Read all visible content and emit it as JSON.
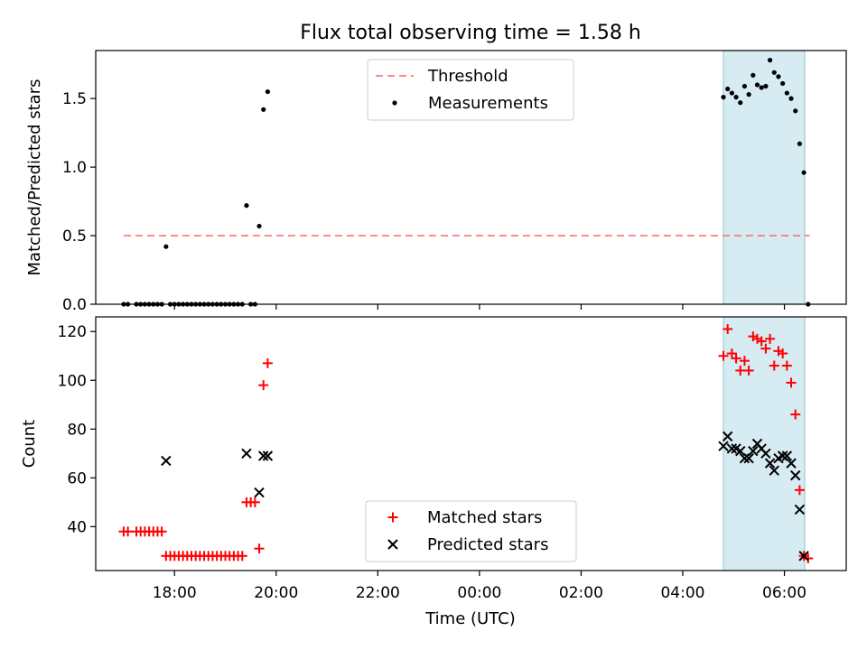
{
  "figure": {
    "title": "Flux total observing time = 1.58 h"
  },
  "chart_data": [
    {
      "type": "scatter",
      "panel": "top",
      "ylabel": "Matched/Predicted stars",
      "ylim": [
        0,
        1.85
      ],
      "yticks": [
        0.0,
        0.5,
        1.0,
        1.5
      ],
      "ytick_labels": [
        "0.0",
        "0.5",
        "1.0",
        "1.5"
      ],
      "xlim": [
        "16:27",
        "07:13"
      ],
      "highlight_span": [
        "04:48",
        "06:24"
      ],
      "legend": {
        "position": "top-center"
      },
      "threshold": {
        "name": "Threshold",
        "y": 0.5,
        "x_start": "17:00",
        "x_end": "06:30",
        "color": "#ff7070",
        "style": "dashed"
      },
      "series": [
        {
          "name": "Measurements",
          "color": "#000000",
          "points": [
            [
              "17:00",
              0.0
            ],
            [
              "17:05",
              0.0
            ],
            [
              "17:15",
              0.0
            ],
            [
              "17:20",
              0.0
            ],
            [
              "17:25",
              0.0
            ],
            [
              "17:30",
              0.0
            ],
            [
              "17:35",
              0.0
            ],
            [
              "17:40",
              0.0
            ],
            [
              "17:45",
              0.0
            ],
            [
              "17:50",
              0.42
            ],
            [
              "17:55",
              0.0
            ],
            [
              "18:00",
              0.0
            ],
            [
              "18:05",
              0.0
            ],
            [
              "18:10",
              0.0
            ],
            [
              "18:15",
              0.0
            ],
            [
              "18:20",
              0.0
            ],
            [
              "18:25",
              0.0
            ],
            [
              "18:30",
              0.0
            ],
            [
              "18:35",
              0.0
            ],
            [
              "18:40",
              0.0
            ],
            [
              "18:45",
              0.0
            ],
            [
              "18:50",
              0.0
            ],
            [
              "18:55",
              0.0
            ],
            [
              "19:00",
              0.0
            ],
            [
              "19:05",
              0.0
            ],
            [
              "19:10",
              0.0
            ],
            [
              "19:15",
              0.0
            ],
            [
              "19:20",
              0.0
            ],
            [
              "19:25",
              0.72
            ],
            [
              "19:30",
              0.0
            ],
            [
              "19:35",
              0.0
            ],
            [
              "19:40",
              0.57
            ],
            [
              "19:45",
              1.42
            ],
            [
              "19:50",
              1.55
            ],
            [
              "04:48",
              1.51
            ],
            [
              "04:53",
              1.57
            ],
            [
              "04:58",
              1.54
            ],
            [
              "05:03",
              1.51
            ],
            [
              "05:08",
              1.47
            ],
            [
              "05:13",
              1.59
            ],
            [
              "05:18",
              1.53
            ],
            [
              "05:23",
              1.67
            ],
            [
              "05:28",
              1.6
            ],
            [
              "05:33",
              1.58
            ],
            [
              "05:38",
              1.59
            ],
            [
              "05:43",
              1.78
            ],
            [
              "05:48",
              1.69
            ],
            [
              "05:53",
              1.66
            ],
            [
              "05:58",
              1.61
            ],
            [
              "06:03",
              1.54
            ],
            [
              "06:08",
              1.5
            ],
            [
              "06:13",
              1.41
            ],
            [
              "06:18",
              1.17
            ],
            [
              "06:23",
              0.96
            ],
            [
              "06:28",
              0.0
            ]
          ]
        }
      ]
    },
    {
      "type": "scatter",
      "panel": "bottom",
      "ylabel": "Count",
      "xlabel": "Time (UTC)",
      "ylim": [
        22,
        126
      ],
      "yticks": [
        40,
        60,
        80,
        100,
        120
      ],
      "ytick_labels": [
        "40",
        "60",
        "80",
        "100",
        "120"
      ],
      "xlim": [
        "16:27",
        "07:13"
      ],
      "xticks": [
        "18:00",
        "20:00",
        "22:00",
        "00:00",
        "02:00",
        "04:00",
        "06:00"
      ],
      "xtick_labels": [
        "18:00",
        "20:00",
        "22:00",
        "00:00",
        "02:00",
        "04:00",
        "06:00"
      ],
      "highlight_span": [
        "04:48",
        "06:24"
      ],
      "legend": {
        "position": "bottom-center"
      },
      "series": [
        {
          "name": "Matched stars",
          "marker": "plus",
          "color": "#ff0000",
          "points": [
            [
              "17:00",
              38
            ],
            [
              "17:05",
              38
            ],
            [
              "17:15",
              38
            ],
            [
              "17:20",
              38
            ],
            [
              "17:25",
              38
            ],
            [
              "17:30",
              38
            ],
            [
              "17:35",
              38
            ],
            [
              "17:40",
              38
            ],
            [
              "17:45",
              38
            ],
            [
              "17:50",
              28
            ],
            [
              "17:55",
              28
            ],
            [
              "18:00",
              28
            ],
            [
              "18:05",
              28
            ],
            [
              "18:10",
              28
            ],
            [
              "18:15",
              28
            ],
            [
              "18:20",
              28
            ],
            [
              "18:25",
              28
            ],
            [
              "18:30",
              28
            ],
            [
              "18:35",
              28
            ],
            [
              "18:40",
              28
            ],
            [
              "18:45",
              28
            ],
            [
              "18:50",
              28
            ],
            [
              "18:55",
              28
            ],
            [
              "19:00",
              28
            ],
            [
              "19:05",
              28
            ],
            [
              "19:10",
              28
            ],
            [
              "19:15",
              28
            ],
            [
              "19:20",
              28
            ],
            [
              "19:25",
              50
            ],
            [
              "19:30",
              50
            ],
            [
              "19:35",
              50
            ],
            [
              "19:40",
              31
            ],
            [
              "19:45",
              98
            ],
            [
              "19:50",
              107
            ],
            [
              "04:48",
              110
            ],
            [
              "04:53",
              121
            ],
            [
              "04:58",
              111
            ],
            [
              "05:03",
              109
            ],
            [
              "05:08",
              104
            ],
            [
              "05:13",
              108
            ],
            [
              "05:18",
              104
            ],
            [
              "05:23",
              118
            ],
            [
              "05:28",
              117
            ],
            [
              "05:33",
              116
            ],
            [
              "05:38",
              113
            ],
            [
              "05:43",
              117
            ],
            [
              "05:48",
              106
            ],
            [
              "05:53",
              112
            ],
            [
              "05:58",
              111
            ],
            [
              "06:03",
              106
            ],
            [
              "06:08",
              99
            ],
            [
              "06:13",
              86
            ],
            [
              "06:18",
              55
            ],
            [
              "06:23",
              28
            ],
            [
              "06:28",
              27
            ]
          ]
        },
        {
          "name": "Predicted stars",
          "marker": "x",
          "color": "#000000",
          "points": [
            [
              "17:50",
              67
            ],
            [
              "19:25",
              70
            ],
            [
              "19:40",
              54
            ],
            [
              "19:45",
              69
            ],
            [
              "19:50",
              69
            ],
            [
              "04:48",
              73
            ],
            [
              "04:53",
              77
            ],
            [
              "04:58",
              72
            ],
            [
              "05:03",
              72
            ],
            [
              "05:08",
              71
            ],
            [
              "05:13",
              68
            ],
            [
              "05:18",
              68
            ],
            [
              "05:23",
              71
            ],
            [
              "05:28",
              74
            ],
            [
              "05:33",
              72
            ],
            [
              "05:38",
              70
            ],
            [
              "05:43",
              66
            ],
            [
              "05:48",
              63
            ],
            [
              "05:53",
              68
            ],
            [
              "05:58",
              69
            ],
            [
              "06:03",
              69
            ],
            [
              "06:08",
              66
            ],
            [
              "06:13",
              61
            ],
            [
              "06:18",
              47
            ],
            [
              "06:23",
              28
            ]
          ]
        }
      ]
    }
  ]
}
